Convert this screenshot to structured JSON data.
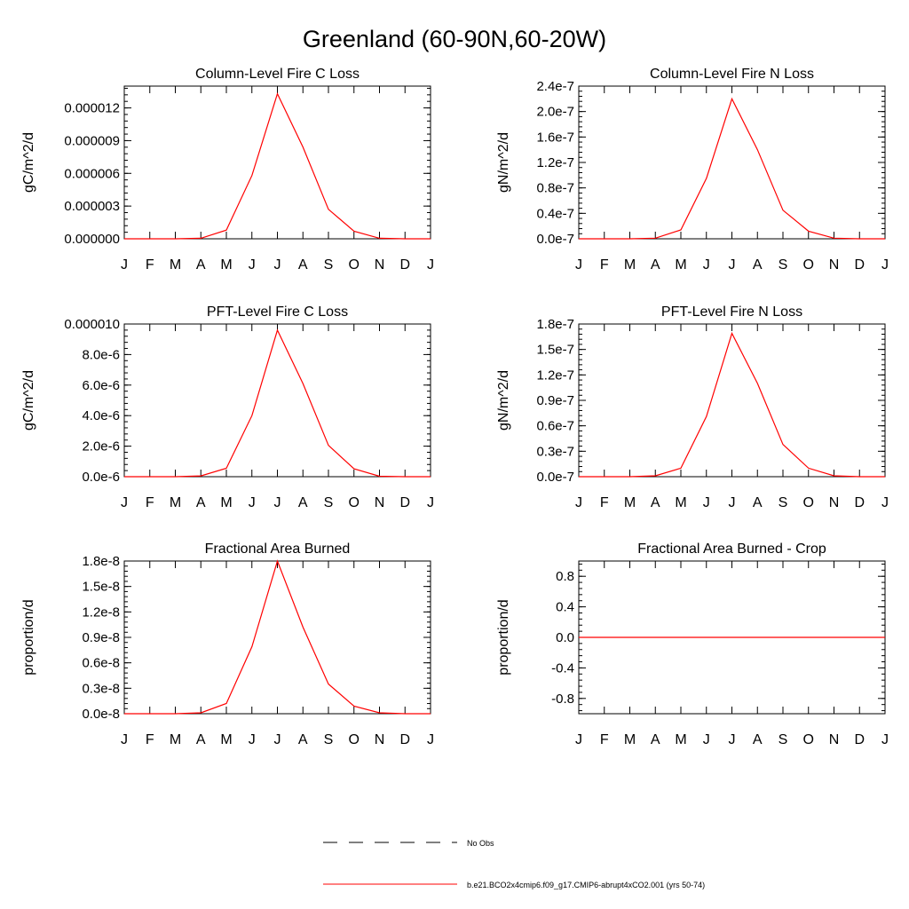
{
  "title": "Greenland (60-90N,60-20W)",
  "months": [
    "J",
    "F",
    "M",
    "A",
    "M",
    "J",
    "J",
    "A",
    "S",
    "O",
    "N",
    "D",
    "J"
  ],
  "colors": {
    "series": "#ff0000",
    "axis": "#000000",
    "background": "#ffffff"
  },
  "chart_data": [
    {
      "type": "line",
      "title": "Column-Level Fire C Loss",
      "ylabel": "gC/m^2/d",
      "ylim": [
        0,
        1.4e-05
      ],
      "yticks": [
        0,
        3e-06,
        6e-06,
        9e-06,
        1.2e-05
      ],
      "ytick_labels": [
        "0.000000",
        "0.000003",
        "0.000006",
        "0.000009",
        "0.000012"
      ],
      "series": [
        {
          "values": [
            0,
            0,
            0,
            5e-08,
            8e-07,
            5.8e-06,
            1.33e-05,
            8.4e-06,
            2.7e-06,
            7e-07,
            5e-08,
            0,
            0
          ]
        }
      ]
    },
    {
      "type": "line",
      "title": "Column-Level Fire N Loss",
      "ylabel": "gN/m^2/d",
      "ylim": [
        0,
        2.4e-07
      ],
      "yticks": [
        0,
        4e-08,
        8e-08,
        1.2e-07,
        1.6e-07,
        2e-07,
        2.4e-07
      ],
      "ytick_labels": [
        "0.0e-7",
        "0.4e-7",
        "0.8e-7",
        "1.2e-7",
        "1.6e-7",
        "2.0e-7",
        "2.4e-7"
      ],
      "series": [
        {
          "values": [
            0,
            0,
            0,
            1e-09,
            1.4e-08,
            9.5e-08,
            2.2e-07,
            1.4e-07,
            4.5e-08,
            1.2e-08,
            1e-09,
            0,
            0
          ]
        }
      ]
    },
    {
      "type": "line",
      "title": "PFT-Level Fire C Loss",
      "ylabel": "gC/m^2/d",
      "ylim": [
        0,
        1e-05
      ],
      "yticks": [
        0,
        2e-06,
        4e-06,
        6e-06,
        8e-06,
        1e-05
      ],
      "ytick_labels": [
        "0.0e-6",
        "2.0e-6",
        "4.0e-6",
        "6.0e-6",
        "8.0e-6",
        "0.000010"
      ],
      "series": [
        {
          "values": [
            0,
            0,
            0,
            5e-08,
            5.5e-07,
            4e-06,
            9.6e-06,
            6.1e-06,
            2.05e-06,
            5.2e-07,
            3e-08,
            0,
            0
          ]
        }
      ]
    },
    {
      "type": "line",
      "title": "PFT-Level Fire N Loss",
      "ylabel": "gN/m^2/d",
      "ylim": [
        0,
        1.8e-07
      ],
      "yticks": [
        0,
        3e-08,
        6e-08,
        9e-08,
        1.2e-07,
        1.5e-07,
        1.8e-07
      ],
      "ytick_labels": [
        "0.0e-7",
        "0.3e-7",
        "0.6e-7",
        "0.9e-7",
        "1.2e-7",
        "1.5e-7",
        "1.8e-7"
      ],
      "series": [
        {
          "values": [
            0,
            0,
            0,
            1e-09,
            1e-08,
            7.1e-08,
            1.69e-07,
            1.1e-07,
            3.8e-08,
            1e-08,
            1e-09,
            0,
            0
          ]
        }
      ]
    },
    {
      "type": "line",
      "title": "Fractional Area Burned",
      "ylabel": "proportion/d",
      "ylim": [
        0,
        1.8e-08
      ],
      "yticks": [
        0,
        3e-09,
        6e-09,
        9e-09,
        1.2e-08,
        1.5e-08,
        1.8e-08
      ],
      "ytick_labels": [
        "0.0e-8",
        "0.3e-8",
        "0.6e-8",
        "0.9e-8",
        "1.2e-8",
        "1.5e-8",
        "1.8e-8"
      ],
      "series": [
        {
          "values": [
            0,
            0,
            0,
            1e-10,
            1.2e-09,
            7.9e-09,
            1.8e-08,
            1.02e-08,
            3.5e-09,
            9e-10,
            1e-10,
            0,
            0
          ]
        }
      ]
    },
    {
      "type": "line",
      "title": "Fractional Area Burned - Crop",
      "ylabel": "proportion/d",
      "ylim": [
        -1.0,
        1.0
      ],
      "yticks": [
        -0.8,
        -0.4,
        0,
        0.4,
        0.8
      ],
      "ytick_labels": [
        "-0.8",
        "-0.4",
        "0.0",
        "0.4",
        "0.8"
      ],
      "series": [
        {
          "values": [
            0,
            0,
            0,
            0,
            0,
            0,
            0,
            0,
            0,
            0,
            0,
            0,
            0
          ]
        }
      ]
    }
  ],
  "legend": [
    {
      "label": "No Obs",
      "style": "dashed",
      "color": "#000000"
    },
    {
      "label": "b.e21.BCO2x4cmip6.f09_g17.CMIP6-abrupt4xCO2.001 (yrs 50-74)",
      "style": "solid",
      "color": "#ff0000"
    }
  ]
}
